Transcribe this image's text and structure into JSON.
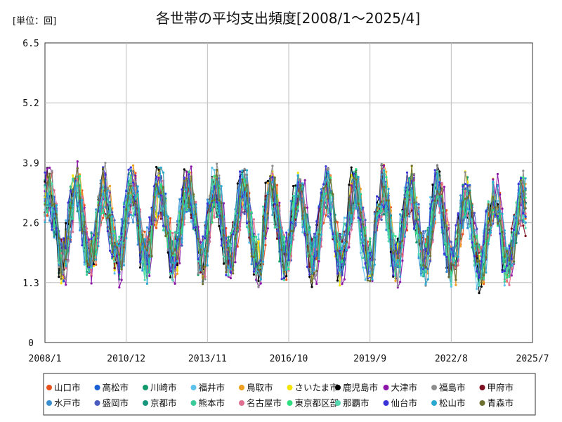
{
  "chart_data": {
    "type": "line",
    "title": "各世帯の平均支出頻度[2008/1～2025/4]",
    "unit_label": "[単位：回]",
    "xlabel": "",
    "ylabel": "",
    "ylim": [
      0,
      6.5
    ],
    "y_ticks": [
      "0",
      "1.3",
      "2.6",
      "3.9",
      "5.2",
      "6.5"
    ],
    "x_ticks": [
      "2008/1",
      "2010/12",
      "2013/11",
      "2016/10",
      "2019/9",
      "2022/8",
      "2025/7"
    ],
    "x_tick_month_index": [
      0,
      35,
      70,
      105,
      140,
      175,
      210
    ],
    "x_range_month_index": [
      0,
      210
    ],
    "last_month_index": 207,
    "grid": true,
    "legend_position": "bottom",
    "series": [
      {
        "name": "山口市",
        "color": "#e8501c"
      },
      {
        "name": "高松市",
        "color": "#1a5fd6"
      },
      {
        "name": "川崎市",
        "color": "#139a6a"
      },
      {
        "name": "福井市",
        "color": "#5cc2ea"
      },
      {
        "name": "鳥取市",
        "color": "#f0a020"
      },
      {
        "name": "さいたま市",
        "color": "#f4e400"
      },
      {
        "name": "鹿児島市",
        "color": "#000000"
      },
      {
        "name": "大津市",
        "color": "#8b16a8"
      },
      {
        "name": "福島市",
        "color": "#8e8e8e"
      },
      {
        "name": "甲府市",
        "color": "#7a1020"
      },
      {
        "name": "水戸市",
        "color": "#3a8fd0"
      },
      {
        "name": "盛岡市",
        "color": "#4a5cc0"
      },
      {
        "name": "京都市",
        "color": "#17967e"
      },
      {
        "name": "熊本市",
        "color": "#3ccc9c"
      },
      {
        "name": "名古屋市",
        "color": "#e07090"
      },
      {
        "name": "東京都区部",
        "color": "#2ee080"
      },
      {
        "name": "那覇市",
        "color": "#54d8b0"
      },
      {
        "name": "仙台市",
        "color": "#3a34d6"
      },
      {
        "name": "松山市",
        "color": "#2aa8d0"
      },
      {
        "name": "青森市",
        "color": "#6e7030"
      }
    ]
  }
}
